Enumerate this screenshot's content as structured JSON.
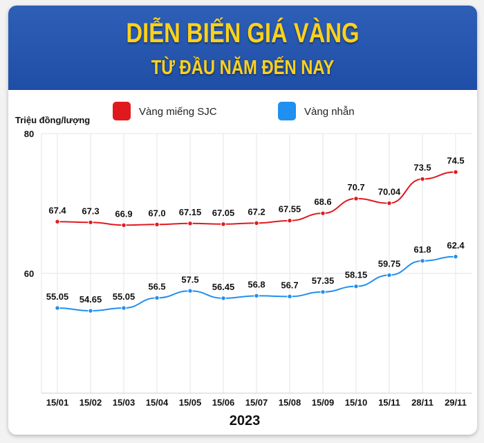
{
  "header": {
    "title": "DIỄN BIẾN GIÁ VÀNG",
    "subtitle": "TỪ ĐẦU NĂM ĐẾN NAY"
  },
  "chart_data": {
    "type": "line",
    "ylabel": "Triệu đồng/lượng",
    "xlabel": "2023",
    "categories": [
      "15/01",
      "15/02",
      "15/03",
      "15/04",
      "15/05",
      "15/06",
      "15/07",
      "15/08",
      "15/09",
      "15/10",
      "15/11",
      "28/11",
      "29/11"
    ],
    "yticks": [
      60,
      80
    ],
    "ylim": [
      43,
      80
    ],
    "grid": true,
    "legend_position": "top",
    "series": [
      {
        "name": "Vàng miếng SJC",
        "color": "#e0191e",
        "values": [
          67.4,
          67.3,
          66.9,
          67.0,
          67.15,
          67.05,
          67.2,
          67.55,
          68.6,
          70.7,
          70.04,
          73.5,
          74.5
        ],
        "labels": [
          "67.4",
          "67.3",
          "66.9",
          "67.0",
          "67.15",
          "67.05",
          "67.2",
          "67.55",
          "68.6",
          "70.7",
          "70.04",
          "73.5",
          "74.5"
        ]
      },
      {
        "name": "Vàng nhẫn",
        "color": "#1f8ff0",
        "values": [
          55.05,
          54.65,
          55.05,
          56.5,
          57.5,
          56.45,
          56.8,
          56.7,
          57.35,
          58.15,
          59.75,
          61.8,
          62.4
        ],
        "labels": [
          "55.05",
          "54.65",
          "55.05",
          "56.5",
          "57.5",
          "56.45",
          "56.8",
          "56.7",
          "57.35",
          "58.15",
          "59.75",
          "61.8",
          "62.4"
        ]
      }
    ]
  }
}
